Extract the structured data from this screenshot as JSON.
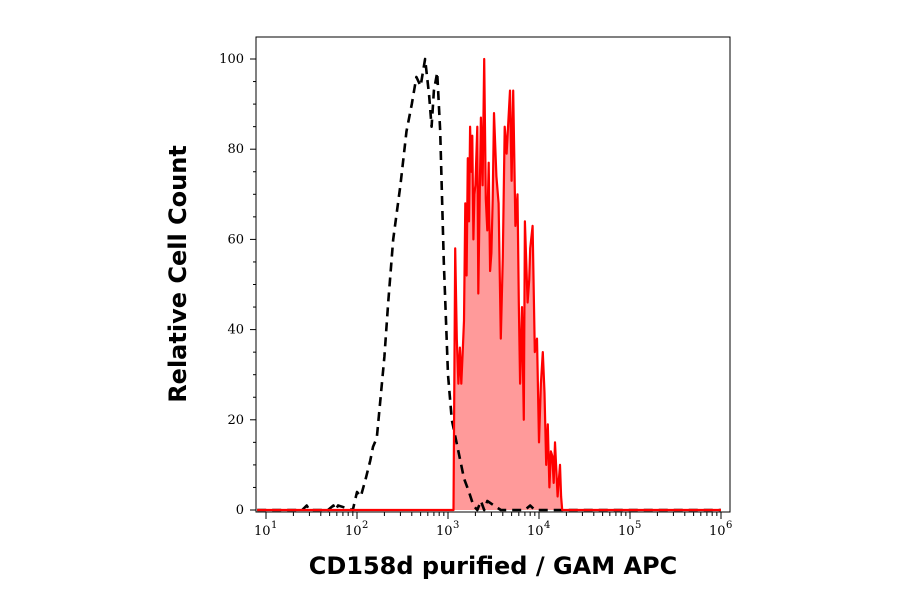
{
  "chart_data": {
    "type": "area",
    "xlabel": "CD158d purified / GAM APC",
    "ylabel": "Relative Cell Count",
    "xscale": "log",
    "xlim": [
      10,
      1000000
    ],
    "ylim": [
      0,
      104
    ],
    "y_ticks": [
      "0",
      "20",
      "40",
      "60",
      "80",
      "100"
    ],
    "x_ticks": [
      {
        "base": "10",
        "exp": "1"
      },
      {
        "base": "10",
        "exp": "2"
      },
      {
        "base": "10",
        "exp": "3"
      },
      {
        "base": "10",
        "exp": "4"
      },
      {
        "base": "10",
        "exp": "5"
      },
      {
        "base": "10",
        "exp": "6"
      }
    ],
    "series": [
      {
        "style": "dashed",
        "color": "#000000",
        "fill": "none",
        "x": [
          8,
          25,
          28,
          30,
          48,
          55,
          58,
          62,
          90,
          100,
          110,
          125,
          140,
          150,
          165,
          180,
          200,
          220,
          250,
          300,
          350,
          400,
          450,
          500,
          560,
          620,
          660,
          700,
          760,
          820,
          900,
          1000,
          1100,
          1300,
          1500,
          1700,
          1900,
          2100,
          2300,
          2500,
          2700,
          3200,
          3800,
          5000,
          7000,
          8000,
          9000,
          10000,
          1000000
        ],
        "y": [
          0,
          0,
          1,
          0,
          0,
          1,
          0,
          1,
          0,
          4,
          3,
          7,
          11,
          14,
          16,
          24,
          34,
          46,
          60,
          72,
          84,
          90,
          96,
          94,
          100,
          92,
          85,
          93,
          97,
          84,
          55,
          30,
          20,
          13,
          7,
          4,
          1,
          0,
          2,
          0,
          2,
          1,
          0,
          0,
          0,
          1,
          0,
          0,
          0
        ]
      },
      {
        "style": "solid",
        "color": "#ff0000",
        "fill": "#ff9a9a",
        "x": [
          8,
          1150,
          1200,
          1250,
          1300,
          1350,
          1400,
          1450,
          1500,
          1550,
          1600,
          1650,
          1700,
          1750,
          1800,
          1850,
          1900,
          1950,
          2000,
          2100,
          2150,
          2200,
          2300,
          2400,
          2500,
          2600,
          2700,
          2800,
          2900,
          3000,
          3100,
          3200,
          3400,
          3600,
          3800,
          4000,
          4200,
          4400,
          4600,
          4800,
          5000,
          5200,
          5500,
          5800,
          6000,
          6200,
          6500,
          6800,
          7000,
          7500,
          7800,
          8000,
          8500,
          9000,
          9500,
          10000,
          10500,
          11000,
          11500,
          12000,
          12500,
          13000,
          13500,
          14000,
          14500,
          15000,
          16000,
          17000,
          17500,
          18000,
          1000000
        ],
        "y": [
          0,
          0,
          58,
          38,
          28,
          36,
          28,
          35,
          42,
          68,
          52,
          78,
          64,
          85,
          75,
          83,
          60,
          70,
          72,
          85,
          48,
          62,
          87,
          72,
          100,
          69,
          62,
          77,
          53,
          57,
          69,
          88,
          74,
          68,
          38,
          56,
          85,
          79,
          86,
          93,
          73,
          93,
          63,
          70,
          46,
          28,
          45,
          20,
          64,
          46,
          51,
          58,
          63,
          35,
          38,
          15,
          28,
          35,
          26,
          10,
          19,
          5,
          13,
          12,
          6,
          15,
          3,
          10,
          3,
          0,
          0
        ]
      }
    ]
  }
}
